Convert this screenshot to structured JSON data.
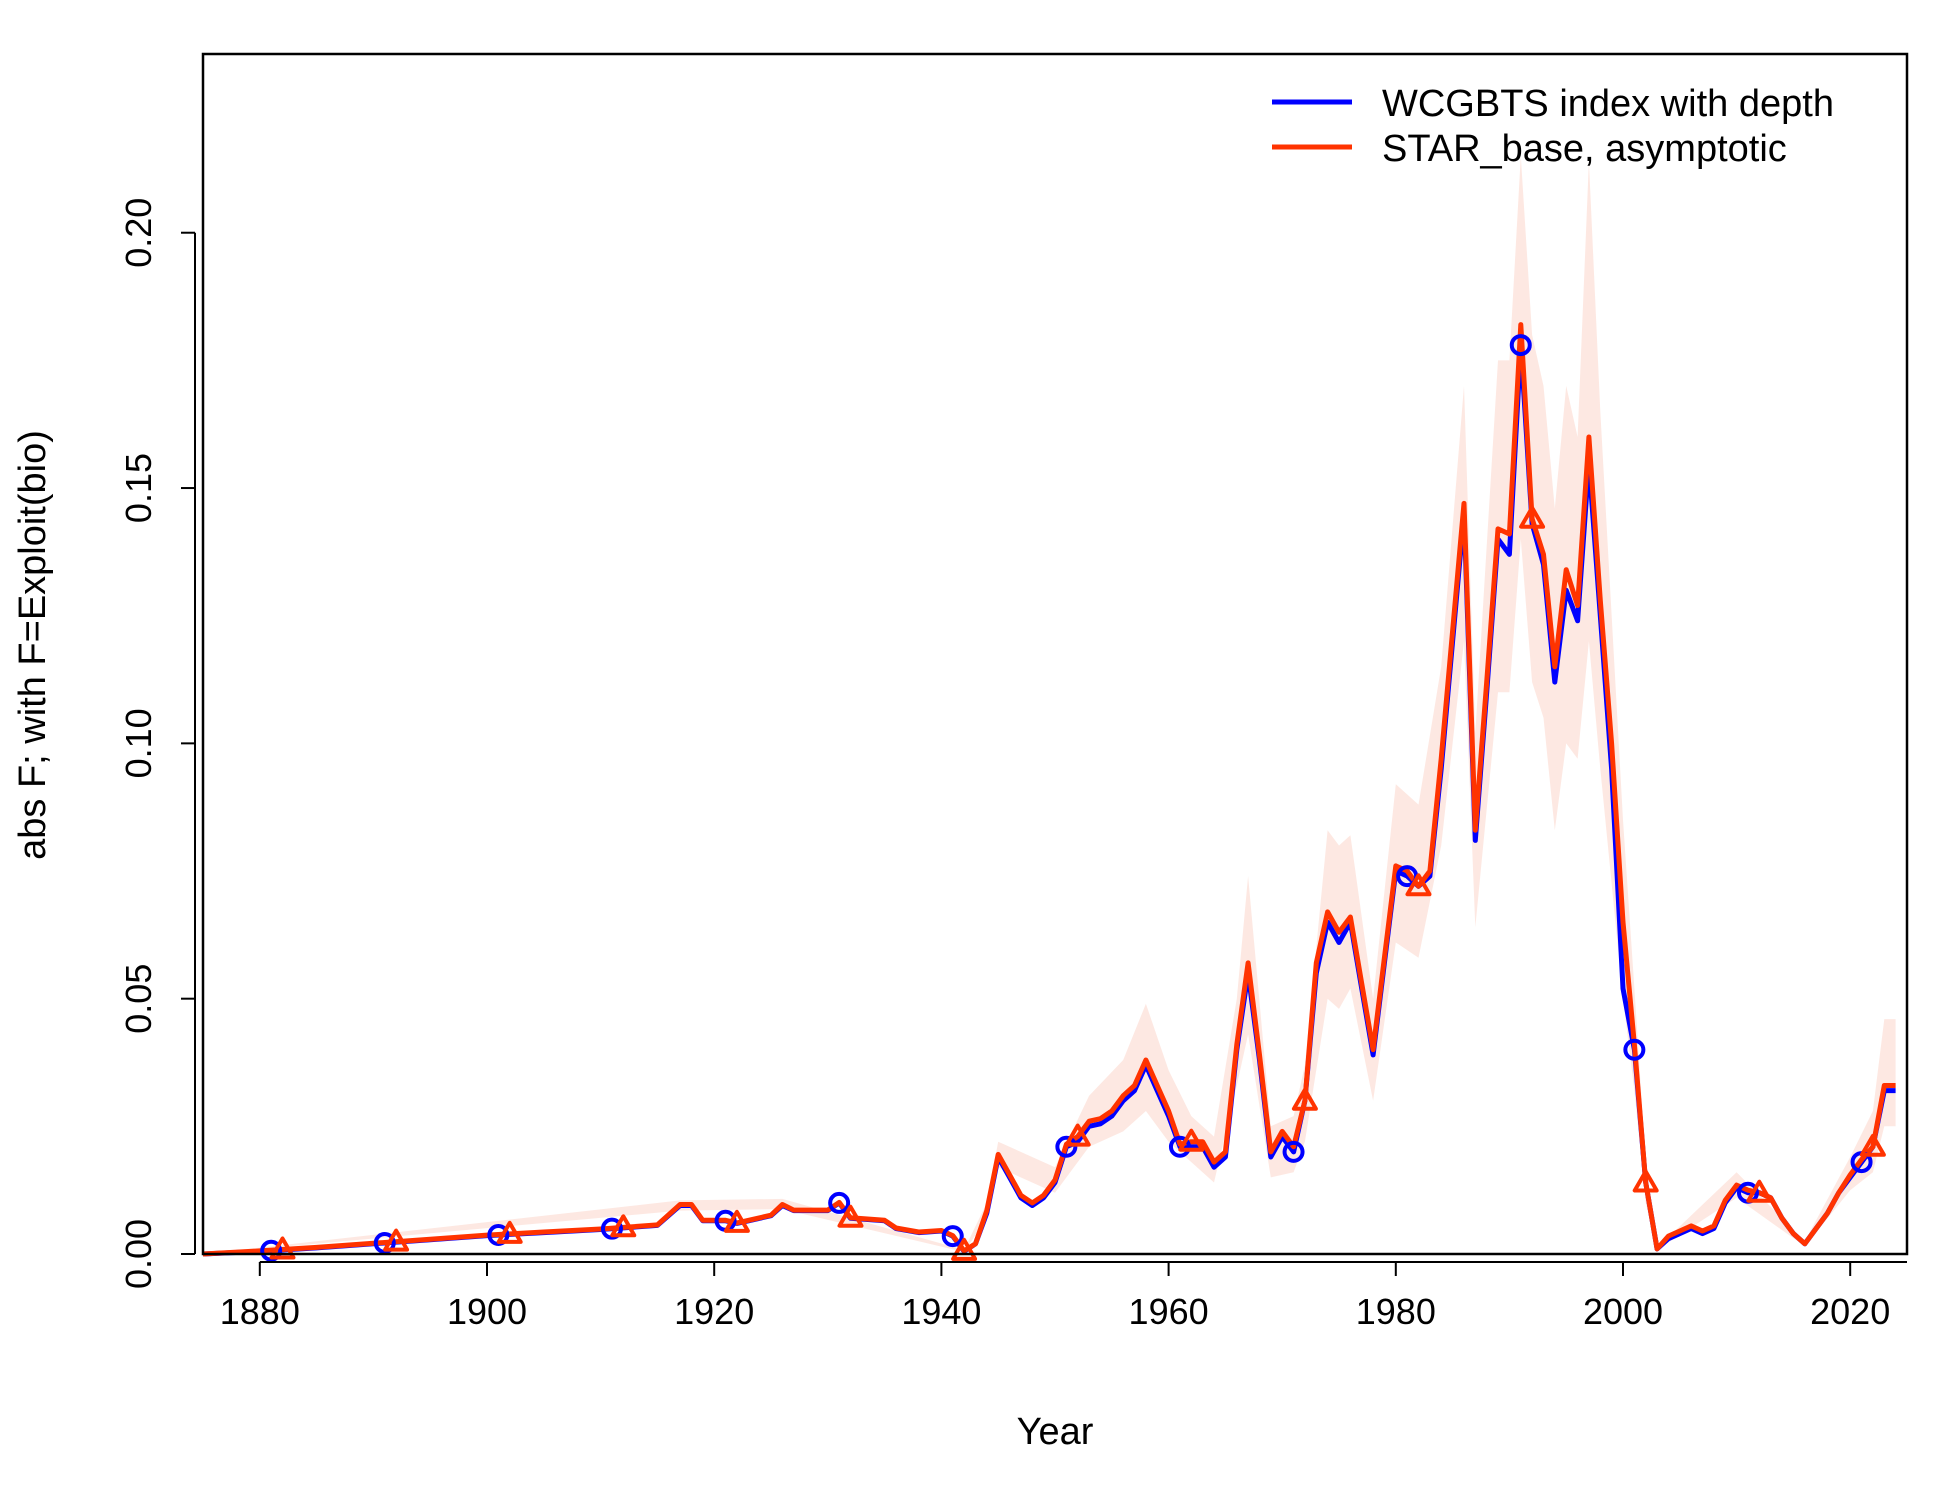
{
  "chart_data": {
    "type": "line",
    "title": "",
    "xlabel": "Year",
    "ylabel": "abs F; with F=Exploit(bio)",
    "xlim": [
      1875,
      2025
    ],
    "ylim": [
      0,
      0.235
    ],
    "x_ticks": [
      1880,
      1900,
      1920,
      1940,
      1960,
      1980,
      2000,
      2020
    ],
    "y_ticks": [
      0,
      0.05,
      0.1,
      0.15,
      0.2
    ],
    "y_tick_labels": [
      "0.00",
      "0.05",
      "0.10",
      "0.15",
      "0.20"
    ],
    "legend_position": "top-right",
    "grid": false,
    "series": [
      {
        "name": "WCGBTS index with depth",
        "color": "#0000ff",
        "marker": "circle",
        "marker_years": [
          1881,
          1891,
          1901,
          1911,
          1921,
          1931,
          1941,
          1951,
          1961,
          1971,
          1981,
          1991,
          2001,
          2011,
          2021
        ],
        "points": [
          [
            1875,
            0
          ],
          [
            1880,
            0.0005
          ],
          [
            1885,
            0.0012
          ],
          [
            1890,
            0.002
          ],
          [
            1895,
            0.0028
          ],
          [
            1900,
            0.0036
          ],
          [
            1905,
            0.0042
          ],
          [
            1910,
            0.0048
          ],
          [
            1915,
            0.0056
          ],
          [
            1917,
            0.0095
          ],
          [
            1918,
            0.0095
          ],
          [
            1919,
            0.0065
          ],
          [
            1921,
            0.0065
          ],
          [
            1922,
            0.006
          ],
          [
            1925,
            0.0075
          ],
          [
            1926,
            0.0095
          ],
          [
            1927,
            0.0085
          ],
          [
            1930,
            0.0085
          ],
          [
            1931,
            0.01
          ],
          [
            1932,
            0.007
          ],
          [
            1935,
            0.0065
          ],
          [
            1936,
            0.005
          ],
          [
            1938,
            0.0042
          ],
          [
            1940,
            0.0045
          ],
          [
            1941,
            0.0035
          ],
          [
            1942,
            0.0005
          ],
          [
            1943,
            0.002
          ],
          [
            1944,
            0.008
          ],
          [
            1945,
            0.019
          ],
          [
            1946,
            0.015
          ],
          [
            1947,
            0.011
          ],
          [
            1948,
            0.0095
          ],
          [
            1949,
            0.011
          ],
          [
            1950,
            0.014
          ],
          [
            1951,
            0.021
          ],
          [
            1952,
            0.022
          ],
          [
            1953,
            0.025
          ],
          [
            1954,
            0.0255
          ],
          [
            1955,
            0.027
          ],
          [
            1956,
            0.03
          ],
          [
            1957,
            0.032
          ],
          [
            1958,
            0.037
          ],
          [
            1959,
            0.032
          ],
          [
            1960,
            0.027
          ],
          [
            1961,
            0.021
          ],
          [
            1962,
            0.021
          ],
          [
            1963,
            0.021
          ],
          [
            1964,
            0.017
          ],
          [
            1965,
            0.019
          ],
          [
            1966,
            0.04
          ],
          [
            1967,
            0.055
          ],
          [
            1968,
            0.038
          ],
          [
            1969,
            0.019
          ],
          [
            1970,
            0.023
          ],
          [
            1971,
            0.02
          ],
          [
            1972,
            0.03
          ],
          [
            1973,
            0.055
          ],
          [
            1974,
            0.065
          ],
          [
            1975,
            0.061
          ],
          [
            1976,
            0.065
          ],
          [
            1977,
            0.052
          ],
          [
            1978,
            0.039
          ],
          [
            1979,
            0.057
          ],
          [
            1980,
            0.075
          ],
          [
            1981,
            0.074
          ],
          [
            1982,
            0.072
          ],
          [
            1983,
            0.074
          ],
          [
            1984,
            0.095
          ],
          [
            1985,
            0.12
          ],
          [
            1986,
            0.145
          ],
          [
            1987,
            0.081
          ],
          [
            1988,
            0.11
          ],
          [
            1989,
            0.14
          ],
          [
            1990,
            0.137
          ],
          [
            1991,
            0.178
          ],
          [
            1992,
            0.143
          ],
          [
            1993,
            0.135
          ],
          [
            1994,
            0.112
          ],
          [
            1995,
            0.13
          ],
          [
            1996,
            0.124
          ],
          [
            1997,
            0.155
          ],
          [
            1998,
            0.125
          ],
          [
            1999,
            0.095
          ],
          [
            2000,
            0.052
          ],
          [
            2001,
            0.04
          ],
          [
            2002,
            0.014
          ],
          [
            2003,
            0.001
          ],
          [
            2004,
            0.003
          ],
          [
            2005,
            0.004
          ],
          [
            2006,
            0.005
          ],
          [
            2007,
            0.004
          ],
          [
            2008,
            0.005
          ],
          [
            2009,
            0.01
          ],
          [
            2010,
            0.013
          ],
          [
            2011,
            0.012
          ],
          [
            2012,
            0.012
          ],
          [
            2013,
            0.011
          ],
          [
            2014,
            0.007
          ],
          [
            2015,
            0.004
          ],
          [
            2016,
            0.002
          ],
          [
            2017,
            0.005
          ],
          [
            2018,
            0.008
          ],
          [
            2019,
            0.012
          ],
          [
            2020,
            0.015
          ],
          [
            2021,
            0.018
          ],
          [
            2022,
            0.021
          ],
          [
            2023,
            0.032
          ],
          [
            2024,
            0.032
          ]
        ]
      },
      {
        "name": "STAR_base, asymptotic",
        "color": "#ff3300",
        "marker": "triangle",
        "marker_years": [
          1882,
          1892,
          1902,
          1912,
          1922,
          1932,
          1942,
          1952,
          1962,
          1972,
          1982,
          1992,
          2002,
          2012,
          2022
        ],
        "points": [
          [
            1875,
            0
          ],
          [
            1880,
            0.0006
          ],
          [
            1885,
            0.0013
          ],
          [
            1890,
            0.0021
          ],
          [
            1895,
            0.0029
          ],
          [
            1900,
            0.0037
          ],
          [
            1905,
            0.0043
          ],
          [
            1910,
            0.0049
          ],
          [
            1915,
            0.0057
          ],
          [
            1917,
            0.0097
          ],
          [
            1918,
            0.0097
          ],
          [
            1919,
            0.0066
          ],
          [
            1921,
            0.0066
          ],
          [
            1922,
            0.0061
          ],
          [
            1925,
            0.0076
          ],
          [
            1926,
            0.0097
          ],
          [
            1927,
            0.0086
          ],
          [
            1930,
            0.0086
          ],
          [
            1931,
            0.0101
          ],
          [
            1932,
            0.0071
          ],
          [
            1935,
            0.0066
          ],
          [
            1936,
            0.0051
          ],
          [
            1938,
            0.0043
          ],
          [
            1940,
            0.0046
          ],
          [
            1941,
            0.0036
          ],
          [
            1942,
            0.0006
          ],
          [
            1943,
            0.002
          ],
          [
            1944,
            0.0085
          ],
          [
            1945,
            0.0195
          ],
          [
            1946,
            0.0155
          ],
          [
            1947,
            0.0115
          ],
          [
            1948,
            0.01
          ],
          [
            1949,
            0.0115
          ],
          [
            1950,
            0.0145
          ],
          [
            1951,
            0.0215
          ],
          [
            1952,
            0.023
          ],
          [
            1953,
            0.026
          ],
          [
            1954,
            0.0265
          ],
          [
            1955,
            0.028
          ],
          [
            1956,
            0.031
          ],
          [
            1957,
            0.033
          ],
          [
            1958,
            0.038
          ],
          [
            1959,
            0.033
          ],
          [
            1960,
            0.028
          ],
          [
            1961,
            0.0215
          ],
          [
            1962,
            0.022
          ],
          [
            1963,
            0.022
          ],
          [
            1964,
            0.018
          ],
          [
            1965,
            0.02
          ],
          [
            1966,
            0.041
          ],
          [
            1967,
            0.057
          ],
          [
            1968,
            0.039
          ],
          [
            1969,
            0.02
          ],
          [
            1970,
            0.024
          ],
          [
            1971,
            0.021
          ],
          [
            1972,
            0.03
          ],
          [
            1973,
            0.057
          ],
          [
            1974,
            0.067
          ],
          [
            1975,
            0.063
          ],
          [
            1976,
            0.066
          ],
          [
            1977,
            0.053
          ],
          [
            1978,
            0.04
          ],
          [
            1979,
            0.058
          ],
          [
            1980,
            0.076
          ],
          [
            1981,
            0.075
          ],
          [
            1982,
            0.072
          ],
          [
            1983,
            0.075
          ],
          [
            1984,
            0.097
          ],
          [
            1985,
            0.122
          ],
          [
            1986,
            0.147
          ],
          [
            1987,
            0.083
          ],
          [
            1988,
            0.112
          ],
          [
            1989,
            0.142
          ],
          [
            1990,
            0.141
          ],
          [
            1991,
            0.182
          ],
          [
            1992,
            0.144
          ],
          [
            1993,
            0.137
          ],
          [
            1994,
            0.115
          ],
          [
            1995,
            0.134
          ],
          [
            1996,
            0.127
          ],
          [
            1997,
            0.16
          ],
          [
            1998,
            0.128
          ],
          [
            1999,
            0.1
          ],
          [
            2000,
            0.065
          ],
          [
            2001,
            0.041
          ],
          [
            2002,
            0.014
          ],
          [
            2003,
            0.001
          ],
          [
            2004,
            0.0035
          ],
          [
            2005,
            0.0045
          ],
          [
            2006,
            0.0055
          ],
          [
            2007,
            0.0045
          ],
          [
            2008,
            0.0055
          ],
          [
            2009,
            0.0105
          ],
          [
            2010,
            0.0135
          ],
          [
            2011,
            0.0125
          ],
          [
            2012,
            0.012
          ],
          [
            2013,
            0.011
          ],
          [
            2014,
            0.007
          ],
          [
            2015,
            0.004
          ],
          [
            2016,
            0.002
          ],
          [
            2017,
            0.005
          ],
          [
            2018,
            0.008
          ],
          [
            2019,
            0.012
          ],
          [
            2020,
            0.0155
          ],
          [
            2021,
            0.0185
          ],
          [
            2022,
            0.021
          ],
          [
            2023,
            0.033
          ],
          [
            2024,
            0.033
          ]
        ]
      }
    ],
    "uncertainty_band": {
      "color": "#fde4dd",
      "series": "STAR_base, asymptotic",
      "points": [
        [
          1875,
          0,
          0
        ],
        [
          1917,
          0.0085,
          0.0105
        ],
        [
          1926,
          0.0088,
          0.0108
        ],
        [
          1942,
          0.0004,
          0.0008
        ],
        [
          1944,
          0.007,
          0.01
        ],
        [
          1945,
          0.017,
          0.022
        ],
        [
          1950,
          0.012,
          0.017
        ],
        [
          1953,
          0.021,
          0.031
        ],
        [
          1956,
          0.024,
          0.038
        ],
        [
          1958,
          0.028,
          0.049
        ],
        [
          1960,
          0.022,
          0.036
        ],
        [
          1962,
          0.018,
          0.027
        ],
        [
          1964,
          0.014,
          0.023
        ],
        [
          1966,
          0.033,
          0.05
        ],
        [
          1967,
          0.043,
          0.074
        ],
        [
          1969,
          0.015,
          0.025
        ],
        [
          1971,
          0.016,
          0.027
        ],
        [
          1972,
          0.022,
          0.037
        ],
        [
          1974,
          0.05,
          0.083
        ],
        [
          1975,
          0.048,
          0.08
        ],
        [
          1976,
          0.052,
          0.082
        ],
        [
          1978,
          0.03,
          0.05
        ],
        [
          1980,
          0.061,
          0.092
        ],
        [
          1982,
          0.058,
          0.088
        ],
        [
          1984,
          0.08,
          0.115
        ],
        [
          1986,
          0.12,
          0.17
        ],
        [
          1987,
          0.064,
          0.102
        ],
        [
          1989,
          0.11,
          0.175
        ],
        [
          1990,
          0.11,
          0.175
        ],
        [
          1991,
          0.14,
          0.215
        ],
        [
          1992,
          0.112,
          0.18
        ],
        [
          1993,
          0.105,
          0.17
        ],
        [
          1994,
          0.083,
          0.146
        ],
        [
          1995,
          0.1,
          0.17
        ],
        [
          1996,
          0.097,
          0.16
        ],
        [
          1997,
          0.12,
          0.214
        ],
        [
          1998,
          0.095,
          0.165
        ],
        [
          2000,
          0.05,
          0.085
        ],
        [
          2001,
          0.032,
          0.052
        ],
        [
          2002,
          0.01,
          0.018
        ],
        [
          2003,
          0.0008,
          0.0012
        ],
        [
          2010,
          0.011,
          0.016
        ],
        [
          2016,
          0.0015,
          0.0025
        ],
        [
          2020,
          0.0125,
          0.019
        ],
        [
          2022,
          0.016,
          0.028
        ],
        [
          2023,
          0.025,
          0.046
        ],
        [
          2024,
          0.025,
          0.046
        ]
      ]
    }
  }
}
